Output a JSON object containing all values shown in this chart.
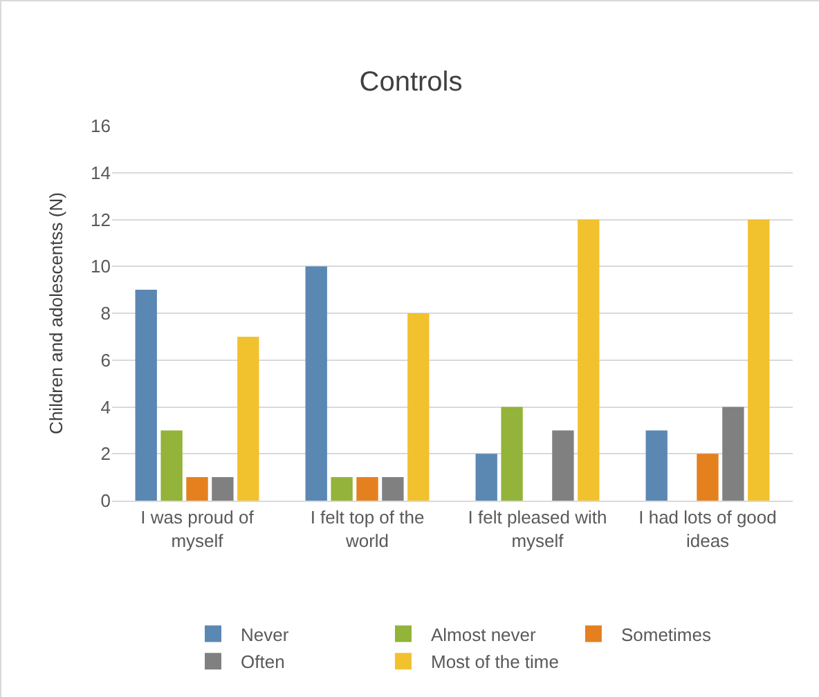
{
  "chart_data": {
    "type": "bar",
    "title": "Controls",
    "ylabel": "Children and adolescentss (N)",
    "categories": [
      "I was proud of myself",
      "I felt top of the world",
      "I felt pleased with myself",
      "I had lots of good ideas"
    ],
    "series": [
      {
        "name": "Never",
        "color": "#5b87b3",
        "values": [
          9,
          10,
          2,
          3
        ]
      },
      {
        "name": "Almost never",
        "color": "#93b33a",
        "values": [
          3,
          1,
          4,
          0
        ]
      },
      {
        "name": "Sometimes",
        "color": "#e5801f",
        "values": [
          1,
          1,
          0,
          2
        ]
      },
      {
        "name": "Often",
        "color": "#808080",
        "values": [
          1,
          1,
          3,
          4
        ]
      },
      {
        "name": "Most of the time",
        "color": "#f2c12e",
        "values": [
          7,
          8,
          12,
          12
        ]
      }
    ],
    "ylim": [
      0,
      16
    ],
    "yticks": [
      0,
      2,
      4,
      6,
      8,
      10,
      12,
      14,
      16
    ],
    "grid": "y",
    "legend": "bottom"
  }
}
